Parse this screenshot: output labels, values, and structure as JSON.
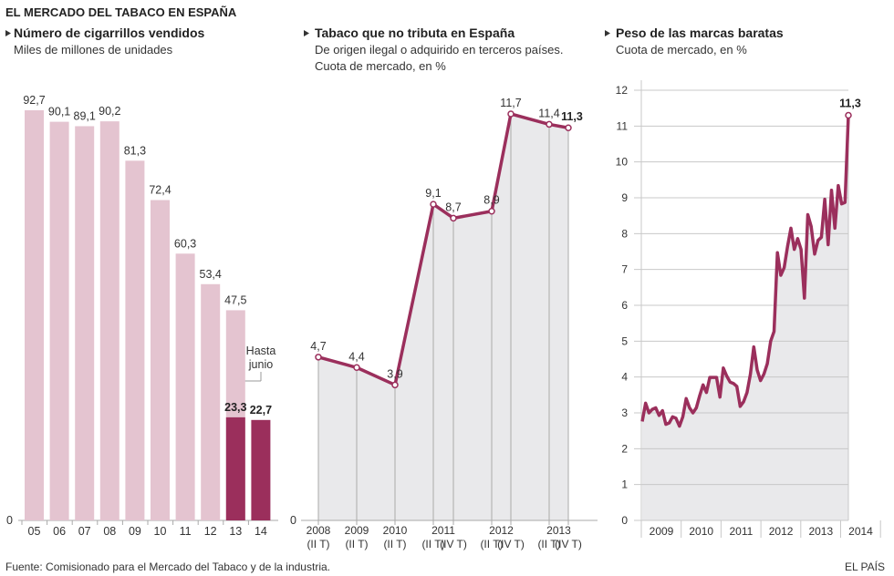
{
  "title": "EL MERCADO DEL TABACO EN ESPAÑA",
  "footer": {
    "source": "Fuente: Comisionado para el Mercado del Tabaco y de la industria.",
    "brand": "EL PAÍS"
  },
  "colors": {
    "light_bar": "#e4c4d0",
    "dark_bar": "#9b2f5c",
    "line": "#9b2f5c",
    "area": "#e9e9eb"
  },
  "chart_data": [
    {
      "type": "bar",
      "title": "Número de cigarrillos vendidos",
      "subtitle": "Miles de millones de unidades",
      "categories": [
        "05",
        "06",
        "07",
        "08",
        "09",
        "10",
        "11",
        "12",
        "13",
        "14"
      ],
      "series": [
        {
          "values": [
            92.7,
            90.1,
            89.1,
            90.2,
            81.3,
            72.4,
            60.3,
            53.4,
            47.5,
            null
          ]
        },
        {
          "values": [
            null,
            null,
            null,
            null,
            null,
            null,
            null,
            null,
            23.3,
            22.7
          ]
        }
      ],
      "labels": [
        "92,7",
        "90,1",
        "89,1",
        "90,2",
        "81,3",
        "72,4",
        "60,3",
        "53,4",
        "47,5"
      ],
      "partial_labels": [
        "23,3",
        "22,7"
      ],
      "annotation": [
        "Hasta",
        "junio"
      ],
      "y_tick": "0",
      "ylim": [
        0,
        92.7
      ]
    },
    {
      "type": "area",
      "title": "Tabaco que no tributa en España",
      "subtitle": [
        "De origen ilegal o adquirido en terceros países.",
        "Cuota de mercado, en %"
      ],
      "categories": [
        "(II T)",
        "(II T)",
        "(II T)",
        "(II T)",
        "(IV T)",
        "(II T)",
        "(IV T)",
        "(II T)",
        "(IV T)"
      ],
      "years": [
        {
          "label": "2008",
          "indices": [
            0
          ]
        },
        {
          "label": "2009",
          "indices": [
            1
          ]
        },
        {
          "label": "2010",
          "indices": [
            2
          ]
        },
        {
          "label": "2011",
          "indices": [
            3,
            4
          ]
        },
        {
          "label": "2012",
          "indices": [
            5,
            6
          ]
        },
        {
          "label": "2013",
          "indices": [
            7,
            8
          ]
        }
      ],
      "values": [
        4.7,
        4.4,
        3.9,
        9.1,
        8.7,
        8.9,
        11.7,
        11.4,
        11.3
      ],
      "labels": [
        "4,7",
        "4,4",
        "3,9",
        "9,1",
        "8,7",
        "8,9",
        "11,7",
        "11,4",
        "11,3"
      ],
      "y_tick": "0",
      "ylim": [
        0,
        11.7
      ]
    },
    {
      "type": "area",
      "title": "Peso de las marcas baratas",
      "subtitle": "Cuota de mercado, en %",
      "x_years": [
        "2009",
        "2010",
        "2011",
        "2012",
        "2013",
        "2014"
      ],
      "y_ticks": [
        "0",
        "1",
        "2",
        "3",
        "4",
        "5",
        "6",
        "7",
        "8",
        "9",
        "10",
        "11",
        "12"
      ],
      "ylim": [
        0,
        12
      ],
      "grid": true,
      "x": [
        "2009-01",
        "2009-02",
        "2009-03",
        "2009-04",
        "2009-05",
        "2009-06",
        "2009-07",
        "2009-08",
        "2009-09",
        "2009-10",
        "2009-11",
        "2009-12",
        "2010-01",
        "2010-02",
        "2010-03",
        "2010-04",
        "2010-05",
        "2010-06",
        "2010-07",
        "2010-08",
        "2010-09",
        "2010-10",
        "2010-11",
        "2010-12",
        "2011-01",
        "2011-02",
        "2011-03",
        "2011-04",
        "2011-05",
        "2011-06",
        "2011-07",
        "2011-08",
        "2011-09",
        "2011-10",
        "2011-11",
        "2011-12",
        "2012-01",
        "2012-02",
        "2012-03",
        "2012-04",
        "2012-05",
        "2012-06",
        "2012-07",
        "2012-08",
        "2012-09",
        "2012-10",
        "2012-11",
        "2012-12",
        "2013-01",
        "2013-02",
        "2013-03",
        "2013-04",
        "2013-05",
        "2013-06",
        "2013-07",
        "2013-08",
        "2013-09",
        "2013-10",
        "2013-11",
        "2013-12",
        "2014-01",
        "2014-02"
      ],
      "values": [
        2.76,
        3.27,
        3.0,
        3.1,
        3.14,
        2.93,
        3.06,
        2.68,
        2.72,
        2.89,
        2.85,
        2.63,
        2.89,
        3.4,
        3.14,
        3.0,
        3.14,
        3.48,
        3.78,
        3.57,
        3.99,
        3.99,
        3.99,
        3.44,
        4.25,
        4.03,
        3.86,
        3.82,
        3.74,
        3.18,
        3.31,
        3.57,
        4.08,
        4.84,
        4.2,
        3.9,
        4.08,
        4.37,
        5.0,
        5.27,
        7.47,
        6.84,
        7.05,
        7.64,
        8.15,
        7.56,
        7.86,
        7.56,
        6.2,
        8.53,
        8.2,
        7.43,
        7.81,
        7.9,
        8.96,
        7.69,
        9.21,
        8.15,
        9.34,
        8.83,
        8.87,
        11.3
      ],
      "last_label": "11,3"
    }
  ]
}
